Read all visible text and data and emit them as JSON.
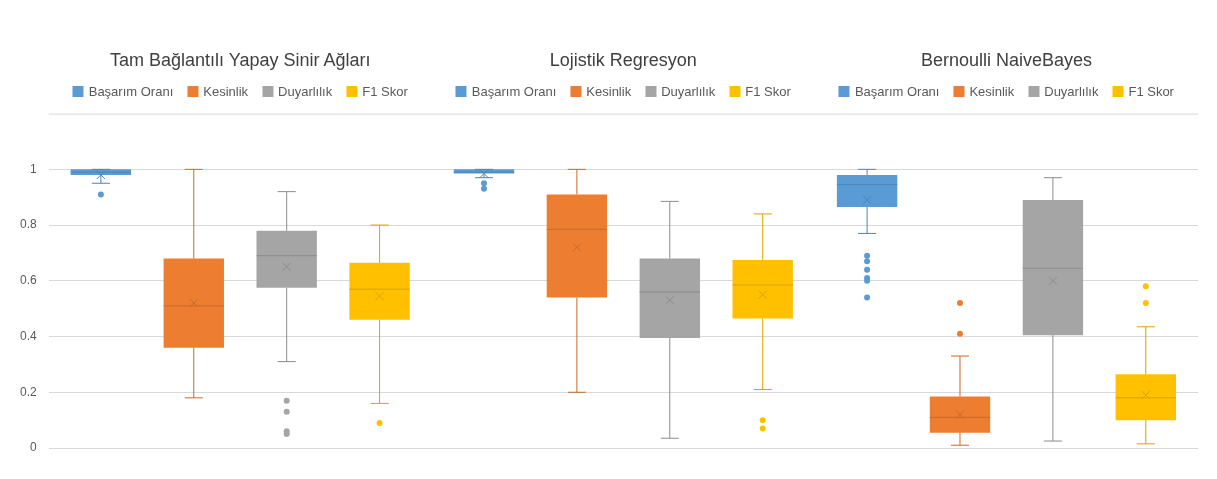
{
  "chart_data": {
    "type": "box",
    "categories": [
      "Tam Bağlantılı Yapay Sinir Ağları",
      "Lojistik Regresyon",
      "Bernoulli NaiveBayes"
    ],
    "ylim": [
      0,
      1.2
    ],
    "yticks": [
      0,
      0.2,
      0.4,
      0.6,
      0.8,
      1
    ],
    "grid": "y",
    "legend": "top",
    "series": [
      {
        "name": "Başarım Oranı",
        "color": "#5b9bd5",
        "boxes": [
          {
            "low": 0.95,
            "q1": 0.98,
            "median": 0.99,
            "q3": 1.0,
            "high": 1.0,
            "mean": 0.98,
            "outliers": [
              0.91
            ]
          },
          {
            "low": 0.97,
            "q1": 0.985,
            "median": 0.99,
            "q3": 1.0,
            "high": 1.0,
            "mean": 0.985,
            "outliers": [
              0.95,
              0.93
            ]
          },
          {
            "low": 0.77,
            "q1": 0.865,
            "median": 0.945,
            "q3": 0.98,
            "high": 1.0,
            "mean": 0.89,
            "outliers": [
              0.69,
              0.67,
              0.64,
              0.61,
              0.6,
              0.54
            ]
          }
        ]
      },
      {
        "name": "Kesinlik",
        "color": "#ed7d31",
        "boxes": [
          {
            "low": 0.18,
            "q1": 0.36,
            "median": 0.51,
            "q3": 0.68,
            "high": 1.0,
            "mean": 0.52
          },
          {
            "low": 0.2,
            "q1": 0.54,
            "median": 0.785,
            "q3": 0.91,
            "high": 1.0,
            "mean": 0.72
          },
          {
            "low": 0.01,
            "q1": 0.055,
            "median": 0.11,
            "q3": 0.185,
            "high": 0.33,
            "mean": 0.12,
            "outliers": [
              0.52,
              0.41
            ]
          }
        ]
      },
      {
        "name": "Duyarlılık",
        "color": "#a5a5a5",
        "boxes": [
          {
            "low": 0.31,
            "q1": 0.575,
            "median": 0.69,
            "q3": 0.78,
            "high": 0.92,
            "mean": 0.65,
            "outliers": [
              0.17,
              0.13,
              0.06,
              0.05
            ]
          },
          {
            "low": 0.035,
            "q1": 0.395,
            "median": 0.56,
            "q3": 0.68,
            "high": 0.885,
            "mean": 0.53
          },
          {
            "low": 0.025,
            "q1": 0.405,
            "median": 0.645,
            "q3": 0.89,
            "high": 0.97,
            "mean": 0.6
          }
        ]
      },
      {
        "name": "F1 Skor",
        "color": "#ffc000",
        "boxes": [
          {
            "low": 0.16,
            "q1": 0.46,
            "median": 0.57,
            "q3": 0.665,
            "high": 0.8,
            "mean": 0.545,
            "outliers": [
              0.09
            ]
          },
          {
            "low": 0.21,
            "q1": 0.465,
            "median": 0.585,
            "q3": 0.675,
            "high": 0.84,
            "mean": 0.55,
            "outliers": [
              0.1,
              0.07
            ]
          },
          {
            "low": 0.015,
            "q1": 0.1,
            "median": 0.18,
            "q3": 0.265,
            "high": 0.435,
            "mean": 0.19,
            "outliers": [
              0.58,
              0.52
            ]
          }
        ]
      }
    ]
  }
}
